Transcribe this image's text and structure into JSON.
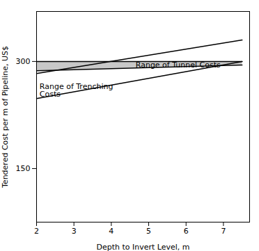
{
  "chart_data": {
    "type": "line",
    "xlabel": "Depth to Invert Level, m",
    "ylabel": "Tendered Cost per m of Pipeline, US$",
    "xlim": [
      2,
      7.7
    ],
    "ylim": [
      75,
      370
    ],
    "xticks": [
      2,
      3,
      4,
      5,
      6,
      7
    ],
    "yticks": [
      150,
      300
    ],
    "grid": false,
    "x": [
      2,
      7.5
    ],
    "series": [
      {
        "type": "area",
        "color": "#c8c8c8",
        "values": [
          287,
          295
        ],
        "upper": [
          300,
          300
        ]
      },
      {
        "type": "line",
        "color": "#000000",
        "values": [
          300,
          300
        ]
      },
      {
        "type": "line",
        "color": "#000000",
        "values": [
          287,
          295
        ]
      },
      {
        "type": "line",
        "color": "#000000",
        "values": [
          283,
          330
        ]
      },
      {
        "type": "line",
        "color": "#000000",
        "values": [
          248,
          300
        ]
      }
    ],
    "annotations": [
      {
        "text": "Range of Tunnel Costs",
        "x": 4.65,
        "y": 295,
        "color": "#000000"
      },
      {
        "text": "Range of Trenching\nCosts",
        "x": 2.08,
        "y": 260,
        "color": "#000000"
      }
    ]
  }
}
